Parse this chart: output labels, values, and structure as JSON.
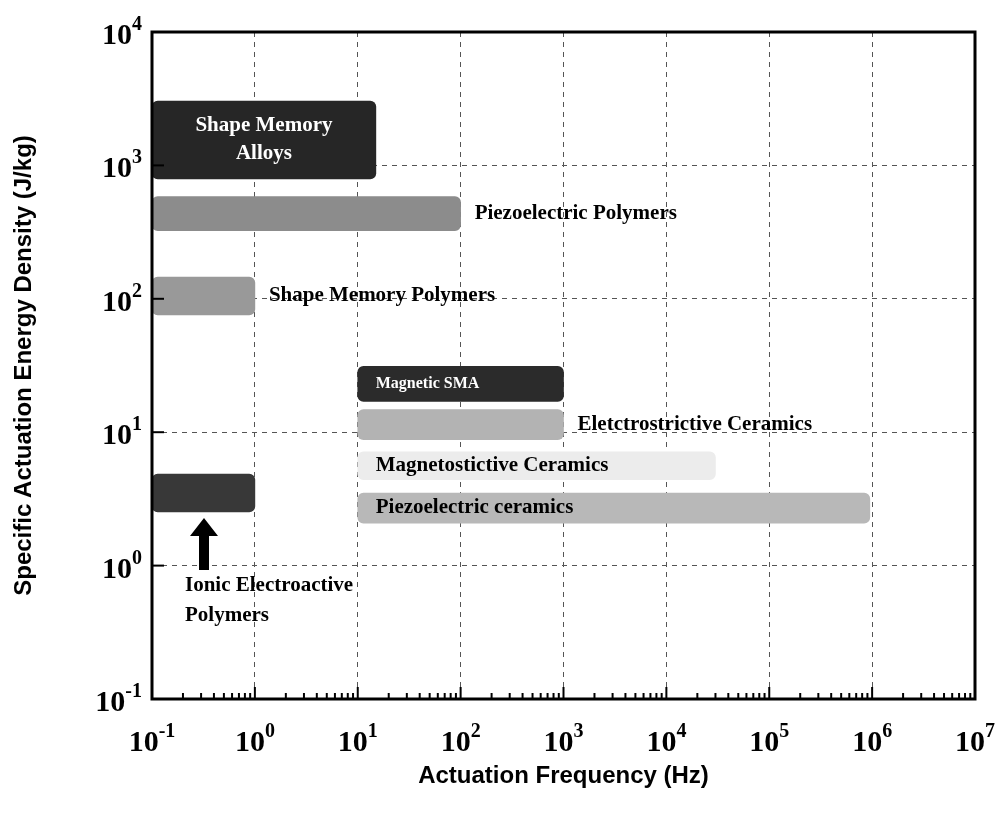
{
  "chart_data": {
    "type": "bar",
    "orientation": "horizontal",
    "xlabel": "Actuation Frequency (Hz)",
    "ylabel": "Specific Actuation Energy Density (J/kg)",
    "log": "xy",
    "grid": true,
    "xlim": [
      0.1,
      10000000
    ],
    "ylim": [
      0.1,
      10000
    ],
    "xticks": [
      {
        "value": 0.1,
        "label": "10$^{-1}$"
      },
      {
        "value": 1,
        "label": "10$^{0}$"
      },
      {
        "value": 10,
        "label": "10$^{1}$"
      },
      {
        "value": 100,
        "label": "10$^{2}$"
      },
      {
        "value": 1000,
        "label": "10$^{3}$"
      },
      {
        "value": 10000,
        "label": "10$^{4}$"
      },
      {
        "value": 100000,
        "label": "10$^{5}$"
      },
      {
        "value": 1000000,
        "label": "10$^{6}$"
      },
      {
        "value": 10000000,
        "label": "10$^{7}$"
      }
    ],
    "yticks": [
      {
        "value": 0.1,
        "label": "10$^{-1}$"
      },
      {
        "value": 1,
        "label": "10$^{0}$"
      },
      {
        "value": 10,
        "label": "10$^{1}$"
      },
      {
        "value": 100,
        "label": "10$^{2}$"
      },
      {
        "value": 1000,
        "label": "10$^{3}$"
      },
      {
        "value": 10000,
        "label": "10$^{4}$"
      }
    ],
    "series": [
      {
        "color": "#262626",
        "x": [
          1550
        ],
        "base": [
          0.1
        ],
        "values": [
          14.9
        ]
      },
      {
        "color": "#8c8c8c",
        "x": [
          435
        ],
        "base": [
          0.1
        ],
        "values": [
          99.9
        ]
      },
      {
        "color": "#999999",
        "x": [
          105
        ],
        "base": [
          0.1
        ],
        "values": [
          0.9
        ]
      },
      {
        "color": "#2b2b2b",
        "x": [
          23
        ],
        "base": [
          10
        ],
        "values": [
          990
        ]
      },
      {
        "color": "#b3b3b3",
        "x": [
          11.4
        ],
        "base": [
          10
        ],
        "values": [
          990
        ]
      },
      {
        "color": "#ececec",
        "x": [
          5.6
        ],
        "base": [
          10
        ],
        "values": [
          29990
        ]
      },
      {
        "color": "#b8b8b8",
        "x": [
          2.7
        ],
        "base": [
          10
        ],
        "values": [
          949990
        ]
      },
      {
        "color": "#383838",
        "x": [
          3.5
        ],
        "base": [
          0.1
        ],
        "values": [
          0.9
        ]
      }
    ],
    "annotations": [
      "Shape Memory Alloys",
      "Piezoelectric Polymers",
      "Shape Memory Polymers",
      "Magnetic SMA",
      "Eletctrostrictive Ceramics",
      "Magnetostictive Ceramics",
      "Piezoelectric ceramics",
      "Ionic Electroactive Polymers"
    ]
  }
}
